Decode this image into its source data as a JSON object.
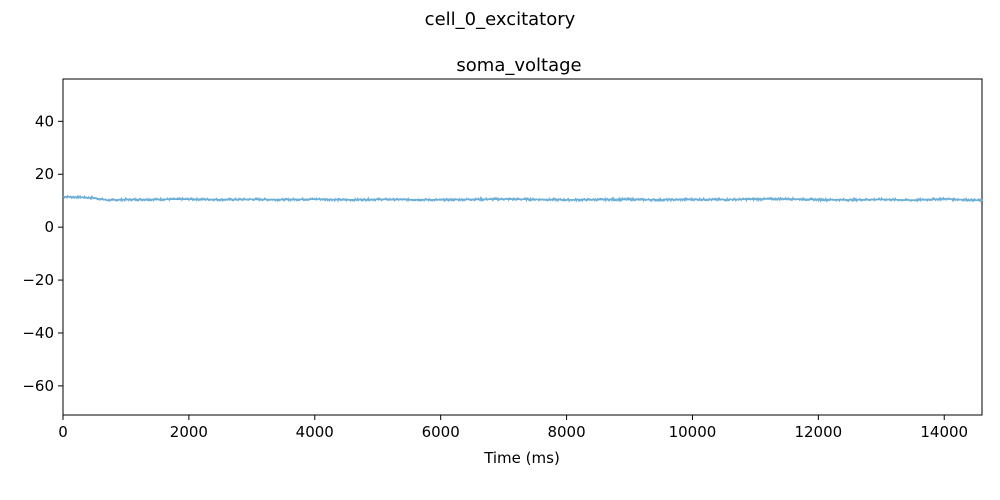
{
  "figure": {
    "suptitle": "cell_0_excitatory"
  },
  "chart_data": {
    "type": "line",
    "title": "soma_voltage",
    "xlabel": "Time (ms)",
    "ylabel": "",
    "xlim": [
      0,
      14600
    ],
    "ylim": [
      -71,
      56
    ],
    "x_ticks": [
      0,
      2000,
      4000,
      6000,
      8000,
      10000,
      12000,
      14000
    ],
    "x_tick_labels": [
      "0",
      "2000",
      "4000",
      "6000",
      "8000",
      "10000",
      "12000",
      "14000"
    ],
    "y_ticks": [
      40,
      20,
      0,
      -20,
      -40,
      -60
    ],
    "y_tick_labels": [
      "40",
      "20",
      "0",
      "−20",
      "−40",
      "−60"
    ],
    "grid": false,
    "series": [
      {
        "color": "#6baed6",
        "x": [
          0,
          300,
          500,
          700,
          1000,
          1500,
          2000,
          2500,
          3000,
          3500,
          4000,
          4500,
          5000,
          5500,
          6000,
          6500,
          7000,
          7500,
          8000,
          8500,
          9000,
          9500,
          10000,
          10500,
          11000,
          11500,
          12000,
          12500,
          13000,
          13500,
          14000,
          14600
        ],
        "y": [
          11.5,
          11.3,
          11.0,
          10.2,
          10.4,
          10.5,
          10.6,
          10.4,
          10.5,
          10.4,
          10.6,
          10.3,
          10.5,
          10.4,
          10.3,
          10.5,
          10.6,
          10.5,
          10.3,
          10.4,
          10.5,
          10.3,
          10.5,
          10.4,
          10.6,
          10.7,
          10.4,
          10.3,
          10.5,
          10.2,
          10.7,
          10.1
        ]
      }
    ]
  }
}
